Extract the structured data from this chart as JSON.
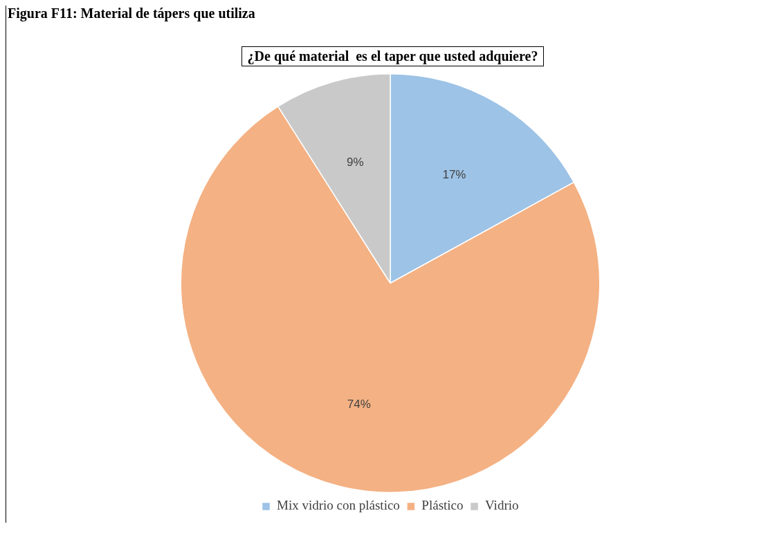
{
  "chart_data": {
    "type": "pie",
    "title": "Figura F11: Material de tápers que utiliza",
    "subtitle": "¿De qué material  es el taper que usted adquiere?",
    "categories": [
      "Mix vidrio con plástico",
      "Plástico",
      "Vidrio"
    ],
    "values": [
      17,
      74,
      9
    ],
    "colors": [
      "#9dc3e6",
      "#f4b183",
      "#c9c9c9"
    ],
    "value_labels": [
      "17%",
      "74%",
      "9%"
    ],
    "legend": "bottom"
  }
}
